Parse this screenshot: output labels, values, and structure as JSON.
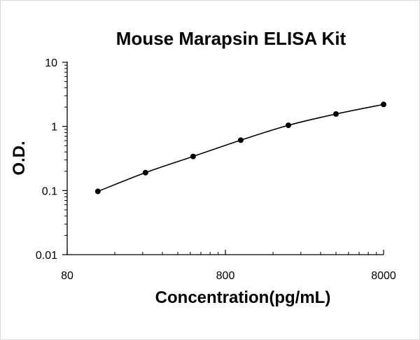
{
  "chart_data": {
    "type": "line",
    "title": "Mouse Marapsin ELISA Kit",
    "xlabel": "Concentration(pg/mL)",
    "ylabel": "O.D.",
    "x_scale": "log",
    "y_scale": "log",
    "xlim": [
      80,
      8000
    ],
    "ylim": [
      0.01,
      10
    ],
    "x_ticks": [
      "80",
      "800",
      "8000"
    ],
    "y_ticks": [
      "10",
      "1",
      "0.1",
      "0.01"
    ],
    "grid": false,
    "legend": "none",
    "series": [
      {
        "x": [
          125,
          250,
          500,
          1000,
          2000,
          4000,
          8000
        ],
        "y": [
          0.097,
          0.19,
          0.34,
          0.61,
          1.04,
          1.56,
          2.2
        ],
        "color": "#000000"
      }
    ]
  }
}
